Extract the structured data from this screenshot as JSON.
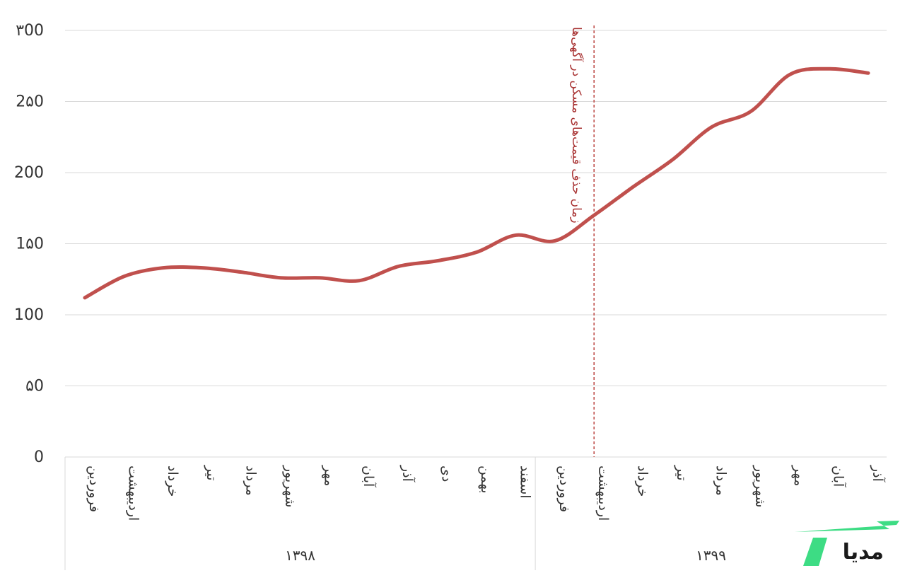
{
  "colors": {
    "line": "#c0504d",
    "grid": "#d9d9d9",
    "annotation": "#c0504d",
    "logo_accent": "#3ddc84"
  },
  "logo": {
    "text": "مدیا"
  },
  "chart_data": {
    "type": "line",
    "title": "",
    "xlabel": "",
    "ylabel": "",
    "ylim": [
      0,
      300
    ],
    "y_ticks": [
      {
        "value": 0,
        "label": "0"
      },
      {
        "value": 50,
        "label": "۵0"
      },
      {
        "value": 100,
        "label": "100"
      },
      {
        "value": 150,
        "label": "1۵0"
      },
      {
        "value": 200,
        "label": "200"
      },
      {
        "value": 250,
        "label": "2۵0"
      },
      {
        "value": 300,
        "label": "۳00"
      }
    ],
    "grid": true,
    "categories": [
      "فروردین",
      "اردیبهشت",
      "خرداد",
      "تیر",
      "مرداد",
      "شهریور",
      "مهر",
      "آبان",
      "آذر",
      "دی",
      "بهمن",
      "اسفند",
      "فروردین",
      "اردیبهشت",
      "خرداد",
      "تیر",
      "مرداد",
      "شهریور",
      "مهر",
      "آبان",
      "آذر"
    ],
    "groups": [
      {
        "label": "۱۳۹۸",
        "count": 12
      },
      {
        "label": "۱۳۹۹",
        "count": 9
      }
    ],
    "series": [
      {
        "values": [
          112,
          127,
          133,
          133,
          130,
          126,
          126,
          124,
          134,
          138,
          144,
          156,
          152,
          170,
          190,
          209,
          232,
          243,
          269,
          273,
          270
        ]
      }
    ],
    "annotations": [
      {
        "type": "vline",
        "at_index": 13,
        "text": "زمان حذف قیمت‌های مسکن در آگهی‌ها"
      }
    ]
  }
}
